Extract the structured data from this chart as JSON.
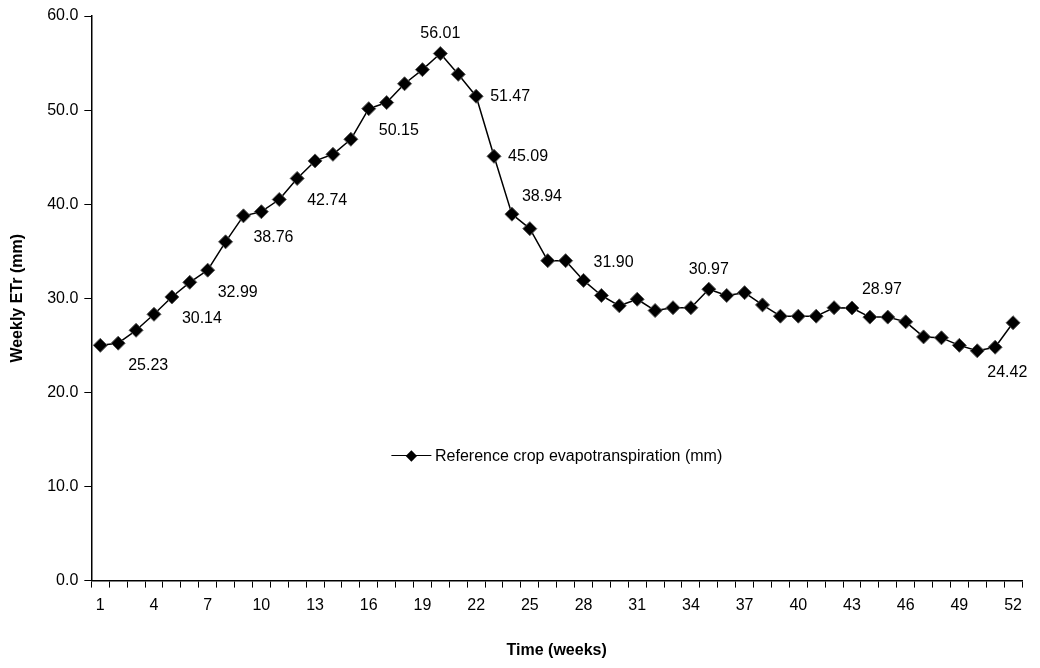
{
  "chart_data": {
    "type": "line",
    "xlabel": "Time (weeks)",
    "ylabel": "Weekly ETr (mm)",
    "categories": [
      "1",
      null,
      null,
      "4",
      null,
      null,
      "7",
      null,
      null,
      "10",
      null,
      null,
      "13",
      null,
      null,
      "16",
      null,
      null,
      "19",
      null,
      null,
      "22",
      null,
      null,
      "25",
      null,
      null,
      "28",
      null,
      null,
      "31",
      null,
      null,
      "34",
      null,
      null,
      "37",
      null,
      null,
      "40",
      null,
      null,
      "43",
      null,
      null,
      "46",
      null,
      null,
      "49",
      null,
      null,
      "52"
    ],
    "series": [
      {
        "name": "Reference crop evapotranspiration (mm)",
        "color": "#000000",
        "values": [
          25.0,
          25.23,
          26.6,
          28.3,
          30.14,
          31.7,
          32.99,
          36.0,
          38.76,
          39.2,
          40.5,
          42.74,
          44.6,
          45.3,
          46.9,
          50.15,
          50.8,
          52.8,
          54.3,
          56.01,
          53.8,
          51.47,
          45.09,
          38.94,
          37.4,
          34.0,
          34.0,
          31.9,
          30.3,
          29.2,
          29.9,
          28.7,
          29.0,
          29.0,
          30.97,
          30.3,
          30.6,
          29.3,
          28.1,
          28.1,
          28.1,
          29.0,
          28.97,
          28.0,
          28.0,
          27.5,
          25.9,
          25.8,
          25.0,
          24.42,
          24.8,
          27.4
        ],
        "value_labels": [
          null,
          "25.23",
          null,
          null,
          "30.14",
          null,
          "32.99",
          null,
          "38.76",
          null,
          null,
          "42.74",
          null,
          null,
          null,
          "50.15",
          null,
          null,
          null,
          "56.01",
          null,
          "51.47",
          "45.09",
          "38.94",
          null,
          null,
          null,
          "31.90",
          null,
          null,
          null,
          null,
          null,
          null,
          "30.97",
          null,
          null,
          null,
          null,
          null,
          null,
          null,
          "28.97",
          null,
          null,
          null,
          null,
          null,
          null,
          "24.42",
          null,
          null
        ]
      }
    ],
    "ylim": [
      0,
      60
    ],
    "yticks": [
      {
        "value": 0,
        "label": "0.0"
      },
      {
        "value": 10,
        "label": "10.0"
      },
      {
        "value": 20,
        "label": "20.0"
      },
      {
        "value": 30,
        "label": "30.0"
      },
      {
        "value": 40,
        "label": "40.0"
      },
      {
        "value": 50,
        "label": "50.0"
      },
      {
        "value": 60,
        "label": "60.0"
      }
    ],
    "grid": false,
    "legend": "center",
    "marker": "diamond",
    "line_style": "solid"
  }
}
